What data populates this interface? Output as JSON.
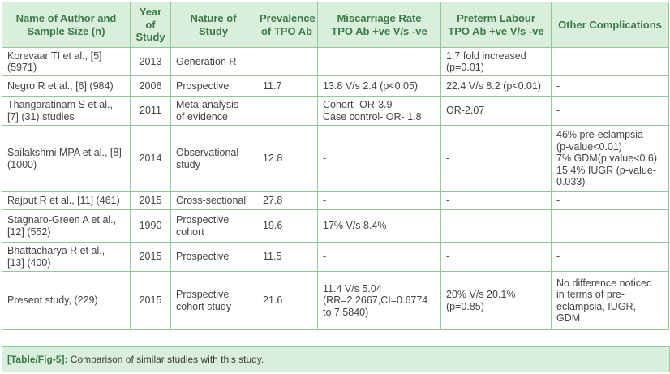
{
  "table": {
    "headers": [
      [
        "Name of Author and",
        "Sample Size (n)"
      ],
      [
        "Year",
        "of",
        "Study"
      ],
      [
        "Nature of",
        "Study"
      ],
      [
        "Prevalence",
        "of TPO Ab"
      ],
      [
        "Miscarriage Rate",
        "TPO Ab +ve V/s -ve"
      ],
      [
        "Preterm Labour",
        "TPO Ab +ve V/s -ve"
      ],
      [
        "Other Complications"
      ]
    ],
    "rows": [
      {
        "author": [
          "Korevaar TI et al., [5]",
          "(5971)"
        ],
        "year": "2013",
        "nature": [
          "Generation R"
        ],
        "prevalence": "-",
        "miscarriage": [
          "-"
        ],
        "preterm": [
          "1.7 fold increased",
          "(p=0.01)"
        ],
        "other": [
          "-"
        ]
      },
      {
        "author": [
          "Negro R et al., [6] (984)"
        ],
        "year": "2006",
        "nature": [
          "Prospective"
        ],
        "prevalence": "11.7",
        "miscarriage": [
          "13.8 V/s 2.4 (p<0.05)"
        ],
        "preterm": [
          "22.4 V/s 8.2 (p<0.01)"
        ],
        "other": [
          "-"
        ]
      },
      {
        "author": [
          "Thangaratinam S et al.,",
          "[7] (31) studies"
        ],
        "year": "2011",
        "nature": [
          "Meta-analysis",
          "of evidence"
        ],
        "prevalence": "",
        "miscarriage": [
          "Cohort- OR-3.9",
          "Case control- OR- 1.8"
        ],
        "preterm": [
          "OR-2.07"
        ],
        "other": [
          "-"
        ]
      },
      {
        "author": [
          "Sailakshmi MPA et al., [8]",
          "(1000)"
        ],
        "year": "2014",
        "nature": [
          "Observational",
          "study"
        ],
        "prevalence": "12.8",
        "miscarriage": [
          "-"
        ],
        "preterm": [
          "-"
        ],
        "other": [
          "46% pre-eclampsia",
          "(p-value<0.01)",
          "7% GDM(p value<0.6)",
          "15.4% IUGR (p-value-",
          "0.033)"
        ]
      },
      {
        "author": [
          "Rajput R et al., [11] (461)"
        ],
        "year": "2015",
        "nature": [
          "Cross-sectional"
        ],
        "prevalence": "27.8",
        "miscarriage": [
          "-"
        ],
        "preterm": [
          "-"
        ],
        "other": [
          "-"
        ]
      },
      {
        "author": [
          "Stagnaro-Green A et al.,",
          "[12] (552)"
        ],
        "year": "1990",
        "nature": [
          "Prospective",
          "cohort"
        ],
        "prevalence": "19.6",
        "miscarriage": [
          "17% V/s 8.4%"
        ],
        "preterm": [
          "-"
        ],
        "other": [
          "-"
        ]
      },
      {
        "author": [
          "Bhattacharya R et al.,",
          "[13] (400)"
        ],
        "year": "2015",
        "nature": [
          "Prospective"
        ],
        "prevalence": "11.5",
        "miscarriage": [
          "-"
        ],
        "preterm": [
          "-"
        ],
        "other": [
          "-"
        ]
      },
      {
        "author": [
          "Present study, (229)"
        ],
        "year": "2015",
        "nature": [
          "Prospective",
          "cohort study"
        ],
        "prevalence": "21.6",
        "miscarriage": [
          "11.4 V/s 5.04",
          "(RR=2.2667,CI=0.6774",
          "to 7.5840)"
        ],
        "preterm": [
          "20% V/s 20.1%",
          "(p=0.85)"
        ],
        "other": [
          "No difference noticed",
          "in terms of pre-",
          "eclampsia, IUGR,",
          "GDM"
        ]
      }
    ]
  },
  "caption": {
    "tag": "[Table/Fig-5]:",
    "text": " Comparison of similar studies with this study."
  },
  "colors": {
    "header_bg": "#d9eedb",
    "header_text": "#3c7a4a",
    "border": "#8fc99a"
  }
}
